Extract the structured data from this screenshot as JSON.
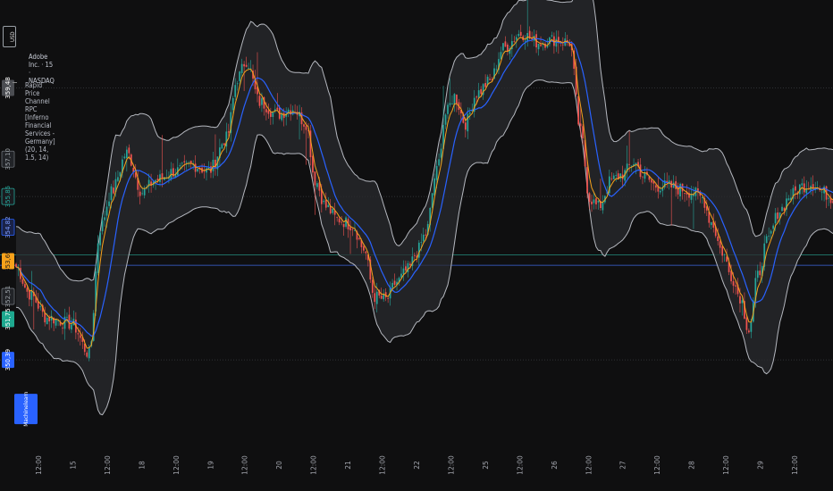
{
  "header": {
    "symbol_badge": "USD",
    "instrument": "Adobe Inc. · 15 · NASDAQ",
    "indicator": "Rapid Price Channel RPC [Inferno Financial Services - Germany] (20, 14, 1.5, 14)"
  },
  "colors": {
    "background": "#0f0f10",
    "up_candle": "#26a69a",
    "down_candle": "#ef5350",
    "channel_fill": "#2a2b2e",
    "channel_edge": "#b5b8bf",
    "midline": "#2962ff",
    "fast_line": "#f7a21b",
    "hline_green": "#1e6f63",
    "hline_blue": "#2f4a9a"
  },
  "price_tags": [
    {
      "text": "359,48",
      "y": 359.48,
      "bg": "#4b4d52",
      "fg": "#ffffff"
    },
    {
      "text": "357,10",
      "y": 357.1,
      "bg": "#222428",
      "fg": "#9aa0a6",
      "outline": "#6b6f76"
    },
    {
      "text": "355,85",
      "y": 355.85,
      "bg": "#1a1c20",
      "fg": "#26a69a",
      "outline": "#26a69a"
    },
    {
      "text": "354,82",
      "y": 354.82,
      "bg": "#1a2348",
      "fg": "#7d9bff",
      "outline": "#2962ff"
    },
    {
      "text": "353,69",
      "y": 353.69,
      "bg": "#f7a21b",
      "fg": "#1a1a1a"
    },
    {
      "text": "352,51",
      "y": 352.51,
      "bg": "#222428",
      "fg": "#9aa0a6",
      "outline": "#6b6f76"
    },
    {
      "text": "351,75",
      "y": 351.75,
      "bg": "#1ea88f",
      "fg": "#ffffff"
    },
    {
      "text": "350,39",
      "y": 350.39,
      "bg": "#2962ff",
      "fg": "#ffffff"
    }
  ],
  "side_tag": {
    "text": "Machinelearn",
    "bg": "#2962ff",
    "fg": "#ffffff"
  },
  "chart_data": {
    "type": "candlestick",
    "title": "Adobe Inc. · 15 · NASDAQ",
    "ylim": [
      347.5,
      362.0
    ],
    "x_ticks": [
      "12:00",
      "15",
      "12:00",
      "18",
      "12:00",
      "19",
      "12:00",
      "20",
      "12:00",
      "21",
      "12:00",
      "22",
      "12:00",
      "25",
      "12:00",
      "26",
      "12:00",
      "27",
      "12:00",
      "28",
      "12:00",
      "29",
      "12:00"
    ],
    "horizontal_lines": [
      {
        "y": 359.48,
        "style": "dotted",
        "color": "#3a3c40"
      },
      {
        "y": 355.85,
        "style": "dotted",
        "color": "#3a3c40"
      },
      {
        "y": 353.9,
        "style": "solid",
        "color": "#1e6f63"
      },
      {
        "y": 353.55,
        "style": "solid",
        "color": "#2f4a9a"
      },
      {
        "y": 350.39,
        "style": "dotted",
        "color": "#3a3c40"
      }
    ],
    "anchors": [
      [
        0,
        353.5
      ],
      [
        6,
        352.6
      ],
      [
        14,
        351.8
      ],
      [
        25,
        351.6
      ],
      [
        33,
        350.6
      ],
      [
        38,
        354.8
      ],
      [
        43,
        356.0
      ],
      [
        50,
        357.3
      ],
      [
        57,
        356.0
      ],
      [
        63,
        356.4
      ],
      [
        72,
        356.7
      ],
      [
        80,
        356.9
      ],
      [
        87,
        356.7
      ],
      [
        95,
        357.8
      ],
      [
        100,
        359.8
      ],
      [
        104,
        360.4
      ],
      [
        110,
        359.0
      ],
      [
        118,
        358.6
      ],
      [
        125,
        358.8
      ],
      [
        131,
        358.3
      ],
      [
        135,
        356.4
      ],
      [
        140,
        355.5
      ],
      [
        145,
        355.1
      ],
      [
        152,
        354.9
      ],
      [
        157,
        354.1
      ],
      [
        162,
        352.5
      ],
      [
        167,
        352.4
      ],
      [
        172,
        353.0
      ],
      [
        177,
        353.4
      ],
      [
        181,
        354.0
      ],
      [
        185,
        354.6
      ],
      [
        190,
        356.7
      ],
      [
        194,
        358.6
      ],
      [
        198,
        359.2
      ],
      [
        203,
        358.3
      ],
      [
        208,
        359.3
      ],
      [
        214,
        359.7
      ],
      [
        220,
        360.8
      ],
      [
        228,
        361.3
      ],
      [
        236,
        361.0
      ],
      [
        244,
        361.1
      ],
      [
        250,
        361.0
      ],
      [
        255,
        358.0
      ],
      [
        259,
        355.8
      ],
      [
        263,
        355.5
      ],
      [
        269,
        356.4
      ],
      [
        274,
        356.6
      ],
      [
        279,
        357.0
      ],
      [
        284,
        356.5
      ],
      [
        289,
        356.2
      ],
      [
        294,
        356.2
      ],
      [
        300,
        356.1
      ],
      [
        305,
        356.0
      ],
      [
        310,
        355.8
      ],
      [
        314,
        355.0
      ],
      [
        319,
        354.0
      ],
      [
        323,
        353.2
      ],
      [
        327,
        352.5
      ],
      [
        331,
        351.4
      ],
      [
        335,
        353.2
      ],
      [
        339,
        354.3
      ],
      [
        345,
        355.4
      ],
      [
        350,
        355.9
      ],
      [
        355,
        356.2
      ],
      [
        360,
        356.3
      ],
      [
        364,
        356.0
      ],
      [
        369,
        355.8
      ]
    ],
    "candle_count": 370,
    "series": [
      {
        "name": "Channel Upper"
      },
      {
        "name": "Channel Lower"
      },
      {
        "name": "Midline"
      },
      {
        "name": "Fast Line"
      }
    ]
  }
}
